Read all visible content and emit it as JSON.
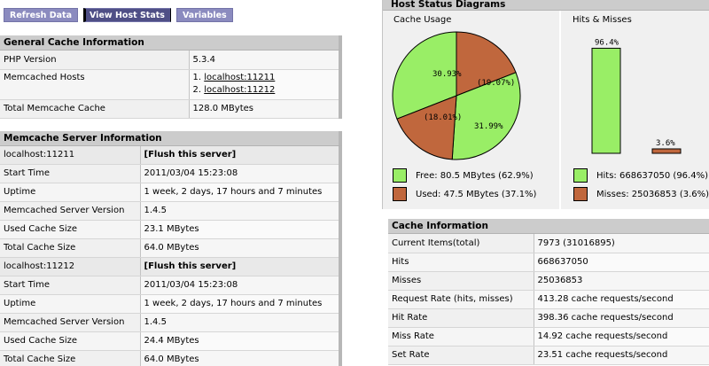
{
  "toolbar": {
    "refresh_label": "Refresh Data",
    "host_stats_label": "View Host Stats",
    "variables_label": "Variables"
  },
  "general": {
    "title": "General Cache Information",
    "php_label": "PHP Version",
    "php_value": "5.3.4",
    "hosts_label": "Memcached Hosts",
    "hosts": [
      "localhost:11211",
      "localhost:11212"
    ],
    "hosts_num1": "1.",
    "hosts_num2": "2.",
    "total_label": "Total Memcache Cache",
    "total_value": "128.0 MBytes"
  },
  "servers": {
    "title": "Memcache Server Information",
    "flush_label": "[Flush this server]",
    "labels": {
      "start": "Start Time",
      "uptime": "Uptime",
      "version": "Memcached Server Version",
      "used": "Used Cache Size",
      "total": "Total Cache Size"
    },
    "list": [
      {
        "host": "localhost:11211",
        "start": "2011/03/04 15:23:08",
        "uptime": "1 week, 2 days, 17 hours and 7 minutes",
        "version": "1.4.5",
        "used": "23.1 MBytes",
        "total": "64.0 MBytes"
      },
      {
        "host": "localhost:11212",
        "start": "2011/03/04 15:23:08",
        "uptime": "1 week, 2 days, 17 hours and 7 minutes",
        "version": "1.4.5",
        "used": "24.4 MBytes",
        "total": "64.0 MBytes"
      }
    ]
  },
  "diagrams": {
    "title": "Host Status Diagrams",
    "usage_title": "Cache Usage",
    "hits_title": "Hits & Misses",
    "colors": {
      "free": "#99ee66",
      "used": "#c0673d"
    },
    "pie_labels": [
      "30.93%",
      "(19.07%)",
      "31.99%",
      "(18.01%)"
    ],
    "free_legend": "Free: 80.5 MBytes (62.9%)",
    "used_legend": "Used: 47.5 MBytes (37.1%)",
    "hits_pct": "96.4%",
    "miss_pct": "3.6%",
    "hits_legend": "Hits: 668637050 (96.4%)",
    "miss_legend": "Misses: 25036853 (3.6%)"
  },
  "chart_data": [
    {
      "type": "pie",
      "title": "Cache Usage",
      "slices": [
        {
          "label": "30.93%",
          "value": 30.93,
          "kind": "free"
        },
        {
          "label": "(19.07%)",
          "value": 19.07,
          "kind": "used"
        },
        {
          "label": "31.99%",
          "value": 31.99,
          "kind": "free"
        },
        {
          "label": "(18.01%)",
          "value": 18.01,
          "kind": "used"
        }
      ]
    },
    {
      "type": "bar",
      "title": "Hits & Misses",
      "categories": [
        "Hits",
        "Misses"
      ],
      "values": [
        96.4,
        3.6
      ]
    }
  ],
  "cacheinfo": {
    "title": "Cache Information",
    "rows": [
      {
        "label": "Current Items(total)",
        "value": "7973 (31016895)"
      },
      {
        "label": "Hits",
        "value": "668637050"
      },
      {
        "label": "Misses",
        "value": "25036853"
      },
      {
        "label": "Request Rate (hits, misses)",
        "value": "413.28 cache requests/second"
      },
      {
        "label": "Hit Rate",
        "value": "398.36 cache requests/second"
      },
      {
        "label": "Miss Rate",
        "value": "14.92 cache requests/second"
      },
      {
        "label": "Set Rate",
        "value": "23.51 cache requests/second"
      }
    ]
  }
}
